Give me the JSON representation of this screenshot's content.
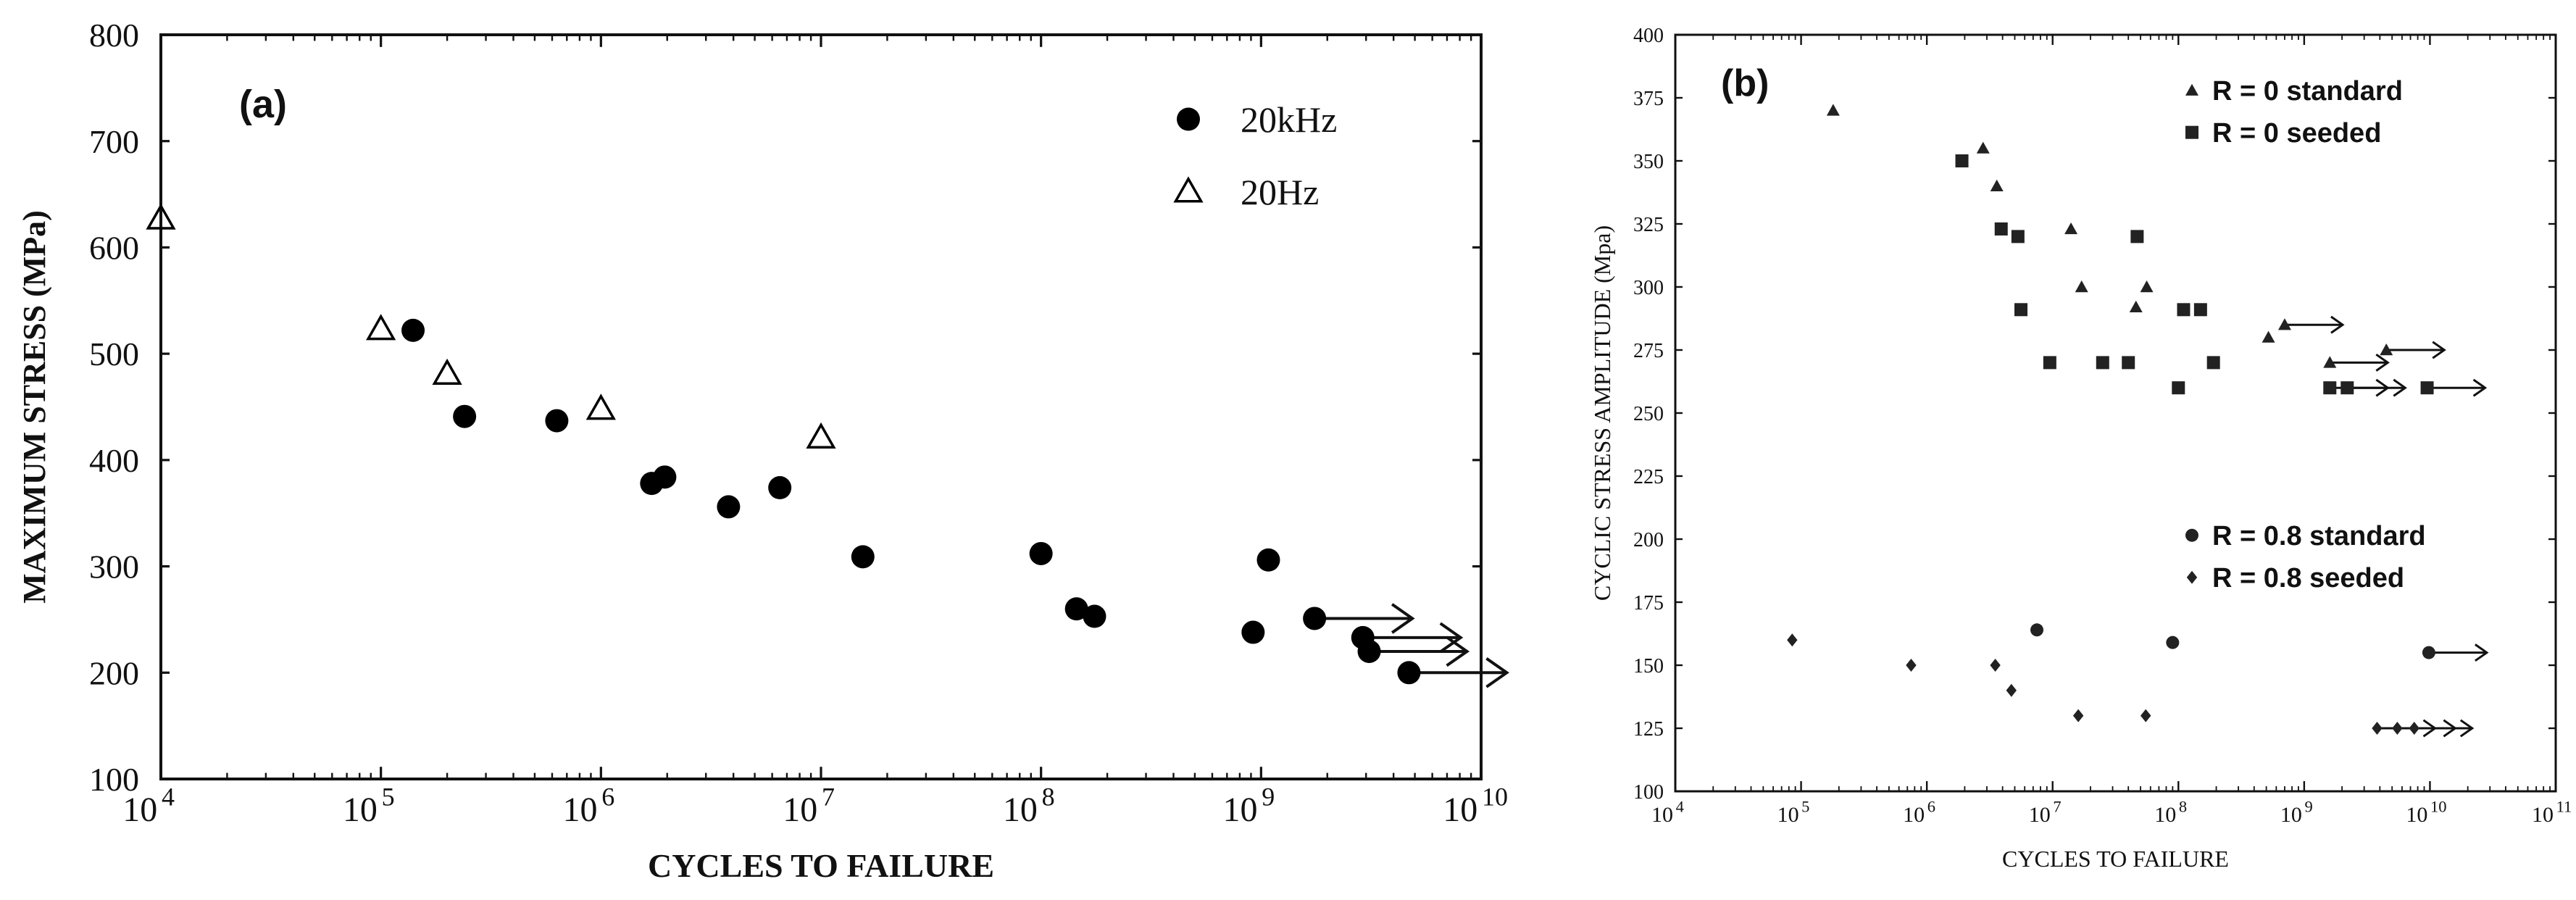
{
  "chart_data": [
    {
      "type": "scatter",
      "panel_label": "(a)",
      "xlabel": "CYCLES TO FAILURE",
      "ylabel": "MAXIMUM STRESS (MPa)",
      "x_scale": "log",
      "xlim": [
        10000,
        10000000000
      ],
      "ylim": [
        100,
        800
      ],
      "x_ticks": [
        {
          "value": 10000,
          "base": "10",
          "exp": "4"
        },
        {
          "value": 100000,
          "base": "10",
          "exp": "5"
        },
        {
          "value": 1000000,
          "base": "10",
          "exp": "6"
        },
        {
          "value": 10000000,
          "base": "10",
          "exp": "7"
        },
        {
          "value": 100000000,
          "base": "10",
          "exp": "8"
        },
        {
          "value": 1000000000,
          "base": "10",
          "exp": "9"
        },
        {
          "value": 10000000000,
          "base": "10",
          "exp": "10"
        }
      ],
      "y_ticks": [
        "100",
        "200",
        "300",
        "400",
        "500",
        "600",
        "700",
        "800"
      ],
      "grid": false,
      "legend_position": "top-right",
      "series": [
        {
          "name": "20kHz",
          "marker": "filled-circle",
          "color": "#000000",
          "points": [
            {
              "x": 140000,
              "y": 522
            },
            {
              "x": 240000,
              "y": 441
            },
            {
              "x": 630000,
              "y": 437
            },
            {
              "x": 1700000,
              "y": 378
            },
            {
              "x": 1950000,
              "y": 384
            },
            {
              "x": 3800000,
              "y": 356
            },
            {
              "x": 6500000,
              "y": 374
            },
            {
              "x": 15500000,
              "y": 309
            },
            {
              "x": 100000000,
              "y": 312
            },
            {
              "x": 145000000,
              "y": 260
            },
            {
              "x": 175000000,
              "y": 253
            },
            {
              "x": 920000000,
              "y": 238
            },
            {
              "x": 1080000000,
              "y": 306
            },
            {
              "x": 1750000000,
              "y": 251,
              "runout": true
            },
            {
              "x": 2900000000,
              "y": 233,
              "runout": true
            },
            {
              "x": 3100000000,
              "y": 220,
              "runout": true
            },
            {
              "x": 4700000000,
              "y": 200,
              "runout": true
            }
          ]
        },
        {
          "name": "20Hz",
          "marker": "open-triangle",
          "color": "#000000",
          "points": [
            {
              "x": 10000,
              "y": 627
            },
            {
              "x": 100000,
              "y": 523
            },
            {
              "x": 200000,
              "y": 481
            },
            {
              "x": 1000000,
              "y": 448
            },
            {
              "x": 10000000,
              "y": 421
            }
          ]
        }
      ]
    },
    {
      "type": "scatter",
      "panel_label": "(b)",
      "xlabel": "CYCLES TO FAILURE",
      "ylabel": "CYCLIC STRESS AMPLITUDE (Mpa)",
      "x_scale": "log",
      "xlim": [
        10000,
        100000000000
      ],
      "ylim": [
        100,
        400
      ],
      "x_ticks": [
        {
          "value": 10000,
          "base": "10",
          "exp": "4"
        },
        {
          "value": 100000,
          "base": "10",
          "exp": "5"
        },
        {
          "value": 1000000,
          "base": "10",
          "exp": "6"
        },
        {
          "value": 10000000,
          "base": "10",
          "exp": "7"
        },
        {
          "value": 100000000,
          "base": "10",
          "exp": "8"
        },
        {
          "value": 1000000000,
          "base": "10",
          "exp": "9"
        },
        {
          "value": 10000000000,
          "base": "10",
          "exp": "10"
        },
        {
          "value": 100000000000,
          "base": "10",
          "exp": "11"
        }
      ],
      "y_ticks": [
        "100",
        "125",
        "150",
        "175",
        "200",
        "225",
        "250",
        "275",
        "300",
        "325",
        "350",
        "375",
        "400"
      ],
      "grid": false,
      "legend_position": "top-right",
      "series": [
        {
          "name": "R = 0 standard",
          "marker": "filled-triangle",
          "color": "#222222",
          "points": [
            {
              "x": 180000,
              "y": 370
            },
            {
              "x": 2800000,
              "y": 355
            },
            {
              "x": 3600000,
              "y": 340
            },
            {
              "x": 14000000,
              "y": 323
            },
            {
              "x": 17000000,
              "y": 300
            },
            {
              "x": 46000000,
              "y": 292
            },
            {
              "x": 56000000,
              "y": 300
            },
            {
              "x": 520000000,
              "y": 280
            },
            {
              "x": 700000000,
              "y": 285,
              "runout": true
            },
            {
              "x": 1600000000,
              "y": 270,
              "runout": true
            },
            {
              "x": 4500000000,
              "y": 275,
              "runout": true
            }
          ]
        },
        {
          "name": "R = 0 seeded",
          "marker": "filled-square",
          "color": "#222222",
          "points": [
            {
              "x": 1900000,
              "y": 350
            },
            {
              "x": 3900000,
              "y": 323
            },
            {
              "x": 5300000,
              "y": 320
            },
            {
              "x": 5600000,
              "y": 291
            },
            {
              "x": 9500000,
              "y": 270
            },
            {
              "x": 25000000,
              "y": 270
            },
            {
              "x": 40000000,
              "y": 270
            },
            {
              "x": 47000000,
              "y": 320
            },
            {
              "x": 110000000,
              "y": 291
            },
            {
              "x": 150000000,
              "y": 291
            },
            {
              "x": 190000000,
              "y": 270
            },
            {
              "x": 100000000,
              "y": 260
            },
            {
              "x": 1600000000,
              "y": 260,
              "runout": true
            },
            {
              "x": 2200000000,
              "y": 260,
              "runout": true
            },
            {
              "x": 9500000000,
              "y": 260,
              "runout": true
            }
          ]
        },
        {
          "name": "R = 0.8 standard",
          "marker": "filled-circle",
          "color": "#222222",
          "points": [
            {
              "x": 7500000,
              "y": 164
            },
            {
              "x": 90000000,
              "y": 159
            },
            {
              "x": 9800000000,
              "y": 155,
              "runout": true
            }
          ]
        },
        {
          "name": "R = 0.8 seeded",
          "marker": "filled-diamond",
          "color": "#222222",
          "points": [
            {
              "x": 85000,
              "y": 160
            },
            {
              "x": 750000,
              "y": 150
            },
            {
              "x": 3500000,
              "y": 150
            },
            {
              "x": 4700000,
              "y": 140
            },
            {
              "x": 16000000,
              "y": 130
            },
            {
              "x": 55000000,
              "y": 130
            },
            {
              "x": 3800000000,
              "y": 125,
              "runout": true
            },
            {
              "x": 5500000000,
              "y": 125,
              "runout": true
            },
            {
              "x": 7500000000,
              "y": 125,
              "runout": true
            }
          ]
        }
      ]
    }
  ]
}
